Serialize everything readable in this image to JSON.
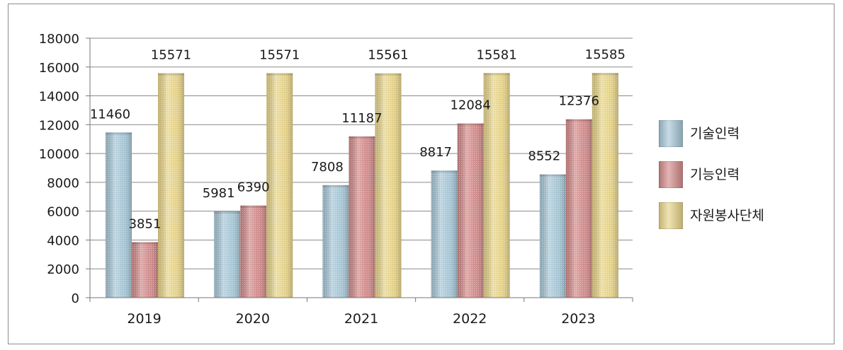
{
  "chart_data": {
    "type": "bar",
    "categories": [
      "2019",
      "2020",
      "2021",
      "2022",
      "2023"
    ],
    "series": [
      {
        "name": "기술인력",
        "values": [
          11460,
          5981,
          7808,
          8817,
          8552
        ],
        "color": "#a8c8d8"
      },
      {
        "name": "기능인력",
        "values": [
          3851,
          6390,
          11187,
          12084,
          12376
        ],
        "color": "#d48c8c"
      },
      {
        "name": "자원봉사단체",
        "values": [
          15571,
          15571,
          15561,
          15581,
          15585
        ],
        "color": "#e8d58a"
      }
    ],
    "ylim": [
      0,
      18000
    ],
    "yticks": [
      0,
      2000,
      4000,
      6000,
      8000,
      10000,
      12000,
      14000,
      16000,
      18000
    ],
    "grid": true,
    "legend_position": "right"
  }
}
